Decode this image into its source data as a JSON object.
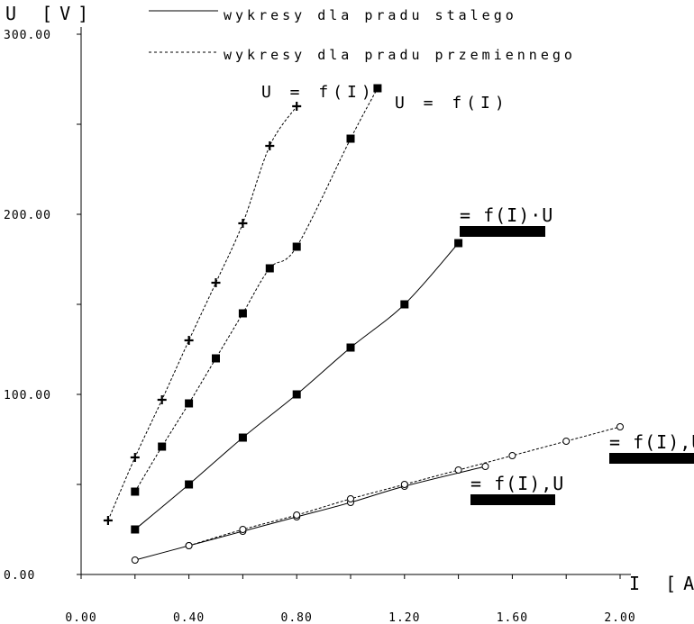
{
  "chart_data": {
    "type": "line",
    "xlabel": "I [A]",
    "ylabel": "U [V]",
    "xlim": [
      0,
      2.0
    ],
    "ylim": [
      0,
      300
    ],
    "x_ticks": [
      "0.00",
      "0.40",
      "0.80",
      "1.20",
      "1.60",
      "2.00"
    ],
    "y_ticks": [
      "0.00",
      "100.00",
      "200.00",
      "300.00"
    ],
    "legend": [
      {
        "label": "wykresy dla pradu stalego",
        "style": "solid"
      },
      {
        "label": "wykresy dla pradu przemiennego",
        "style": "dashed"
      }
    ],
    "annotations": [
      "U = f(I)",
      "U = f(I)",
      "= f(I)·U",
      "= f(I),U",
      "= f(I),U"
    ],
    "series": [
      {
        "style": "dashed",
        "marker": "plus",
        "x": [
          0.1,
          0.2,
          0.3,
          0.4,
          0.5,
          0.6,
          0.7,
          0.8
        ],
        "y": [
          30,
          65,
          97,
          130,
          162,
          195,
          238,
          260
        ]
      },
      {
        "style": "dashed",
        "marker": "square",
        "x": [
          0.2,
          0.3,
          0.4,
          0.5,
          0.6,
          0.7,
          0.8,
          1.0,
          1.1
        ],
        "y": [
          46,
          71,
          95,
          120,
          145,
          170,
          182,
          242,
          270
        ]
      },
      {
        "style": "solid",
        "marker": "square",
        "x": [
          0.2,
          0.4,
          0.6,
          0.8,
          1.0,
          1.2,
          1.4
        ],
        "y": [
          25,
          50,
          76,
          100,
          126,
          150,
          184
        ]
      },
      {
        "style": "solid",
        "marker": "circle",
        "x": [
          0.2,
          0.4,
          0.6,
          0.8,
          1.0,
          1.2,
          1.5
        ],
        "y": [
          8,
          16,
          24,
          32,
          40,
          49,
          60
        ]
      },
      {
        "style": "dashed",
        "marker": "circle",
        "x": [
          0.4,
          0.6,
          0.8,
          1.0,
          1.2,
          1.4,
          1.6,
          1.8,
          2.0
        ],
        "y": [
          16,
          25,
          33,
          42,
          50,
          58,
          66,
          74,
          82
        ]
      }
    ]
  }
}
